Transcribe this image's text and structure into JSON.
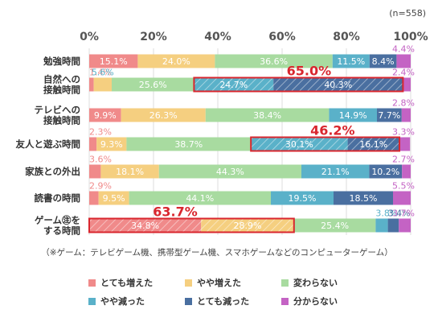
{
  "chart_data": {
    "type": "bar",
    "orientation": "horizontal",
    "stacked": true,
    "sample_size": "(n=558)",
    "x_ticks": [
      "0%",
      "20%",
      "40%",
      "60%",
      "80%",
      "100%"
    ],
    "xlim": [
      0,
      100
    ],
    "categories": [
      [
        "勉強時間"
      ],
      [
        "自然への",
        "接触時間"
      ],
      [
        "テレビへの",
        "接触時間"
      ],
      [
        "友人と遊ぶ時間"
      ],
      [
        "家族との外出"
      ],
      [
        "読書の時間"
      ],
      [
        "ゲーム㊟を",
        "する時間"
      ]
    ],
    "series": [
      {
        "name": "とても増えた",
        "color": "#f08a8a",
        "values": [
          15.1,
          1.4,
          9.9,
          2.3,
          3.6,
          2.9,
          34.8
        ]
      },
      {
        "name": "やや増えた",
        "color": "#f5cf80",
        "values": [
          24.0,
          5.6,
          26.3,
          9.3,
          18.1,
          9.5,
          28.9
        ]
      },
      {
        "name": "変わらない",
        "color": "#a8dba0",
        "values": [
          36.6,
          25.6,
          38.4,
          38.7,
          44.3,
          44.1,
          25.4
        ]
      },
      {
        "name": "やや減った",
        "color": "#5ab1c9",
        "values": [
          11.5,
          24.7,
          14.9,
          30.1,
          21.1,
          19.5,
          3.8
        ]
      },
      {
        "name": "とても減った",
        "color": "#4a6fa0",
        "values": [
          8.4,
          40.3,
          7.7,
          16.1,
          10.2,
          18.5,
          3.4
        ]
      },
      {
        "name": "分からない",
        "color": "#c463c4",
        "values": [
          4.4,
          2.4,
          2.8,
          3.3,
          2.7,
          5.5,
          3.7
        ]
      }
    ],
    "highlights": [
      {
        "row": 1,
        "from_series": 3,
        "to_series": 4,
        "label": "65.0%"
      },
      {
        "row": 3,
        "from_series": 3,
        "to_series": 4,
        "label": "46.2%"
      },
      {
        "row": 6,
        "from_series": 0,
        "to_series": 1,
        "label": "63.7%"
      }
    ],
    "highlight_color": "#d9262e",
    "footnote": "（※ゲーム：テレビゲーム機、携帯型ゲーム機、スマホゲームなどのコンピューターゲーム）",
    "legend_position": "bottom"
  }
}
